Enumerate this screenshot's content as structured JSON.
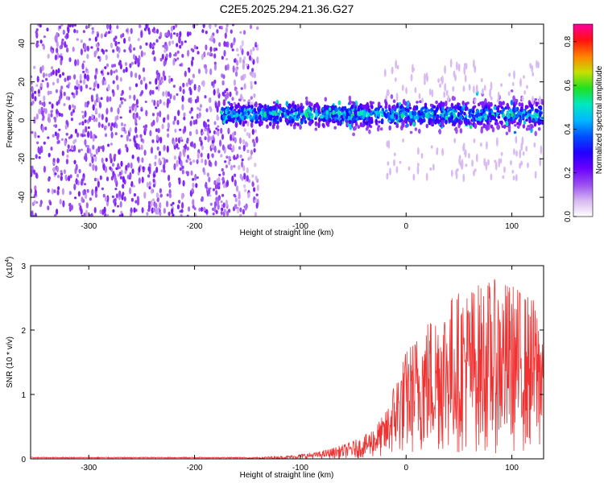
{
  "figure": {
    "title": "C2E5.2025.294.21.36.G27"
  },
  "chart_data": [
    {
      "type": "heatmap",
      "name": "spectrogram",
      "xlabel": "Height of straight line (km)",
      "ylabel": "Frequency (Hz)",
      "xlim": [
        -355,
        130
      ],
      "ylim": [
        -50,
        50
      ],
      "xticks": [
        -300,
        -200,
        -100,
        0,
        100
      ],
      "yticks": [
        -40,
        -20,
        0,
        20,
        40
      ],
      "colorbar": {
        "label": "Normalized spectral amplitude",
        "range": [
          0.0,
          0.88
        ],
        "ticks": [
          0.0,
          0.2,
          0.4,
          0.6,
          0.8
        ],
        "colors": [
          "#ffffff",
          "#d6b8f2",
          "#9a4df0",
          "#6a00ff",
          "#2000ff",
          "#0050ff",
          "#00b8ff",
          "#00e8c0",
          "#20e020",
          "#c8e000",
          "#ff8000",
          "#ff1010",
          "#ff00a0"
        ]
      },
      "regions": [
        {
          "description": "noise",
          "x_range": [
            -355,
            -140
          ],
          "freq_range": [
            -50,
            50
          ]
        },
        {
          "description": "signal",
          "x_range": [
            -175,
            130
          ],
          "freq_center": 3,
          "freq_halfwidth": 9,
          "peak_amplitude": 0.55
        }
      ]
    },
    {
      "type": "line",
      "name": "snr",
      "xlabel": "Height of straight line (km)",
      "ylabel": "SNR (10 * v/v)",
      "yscale_label": "(x10",
      "yscale_exp": "4",
      "xlim": [
        -355,
        130
      ],
      "ylim": [
        0,
        3
      ],
      "xticks": [
        -300,
        -200,
        -100,
        0,
        100
      ],
      "yticks": [
        0,
        1,
        2,
        3
      ],
      "color": "#f03232",
      "envelope": [
        {
          "x": -355,
          "y": 0.02
        },
        {
          "x": -150,
          "y": 0.02
        },
        {
          "x": -110,
          "y": 0.05
        },
        {
          "x": -80,
          "y": 0.12
        },
        {
          "x": -60,
          "y": 0.22
        },
        {
          "x": -40,
          "y": 0.35
        },
        {
          "x": -20,
          "y": 0.7
        },
        {
          "x": -10,
          "y": 1.3
        },
        {
          "x": 0,
          "y": 1.7
        },
        {
          "x": 20,
          "y": 2.2
        },
        {
          "x": 40,
          "y": 2.55
        },
        {
          "x": 60,
          "y": 2.7
        },
        {
          "x": 80,
          "y": 2.8
        },
        {
          "x": 100,
          "y": 2.75
        },
        {
          "x": 130,
          "y": 2.4
        }
      ]
    }
  ]
}
